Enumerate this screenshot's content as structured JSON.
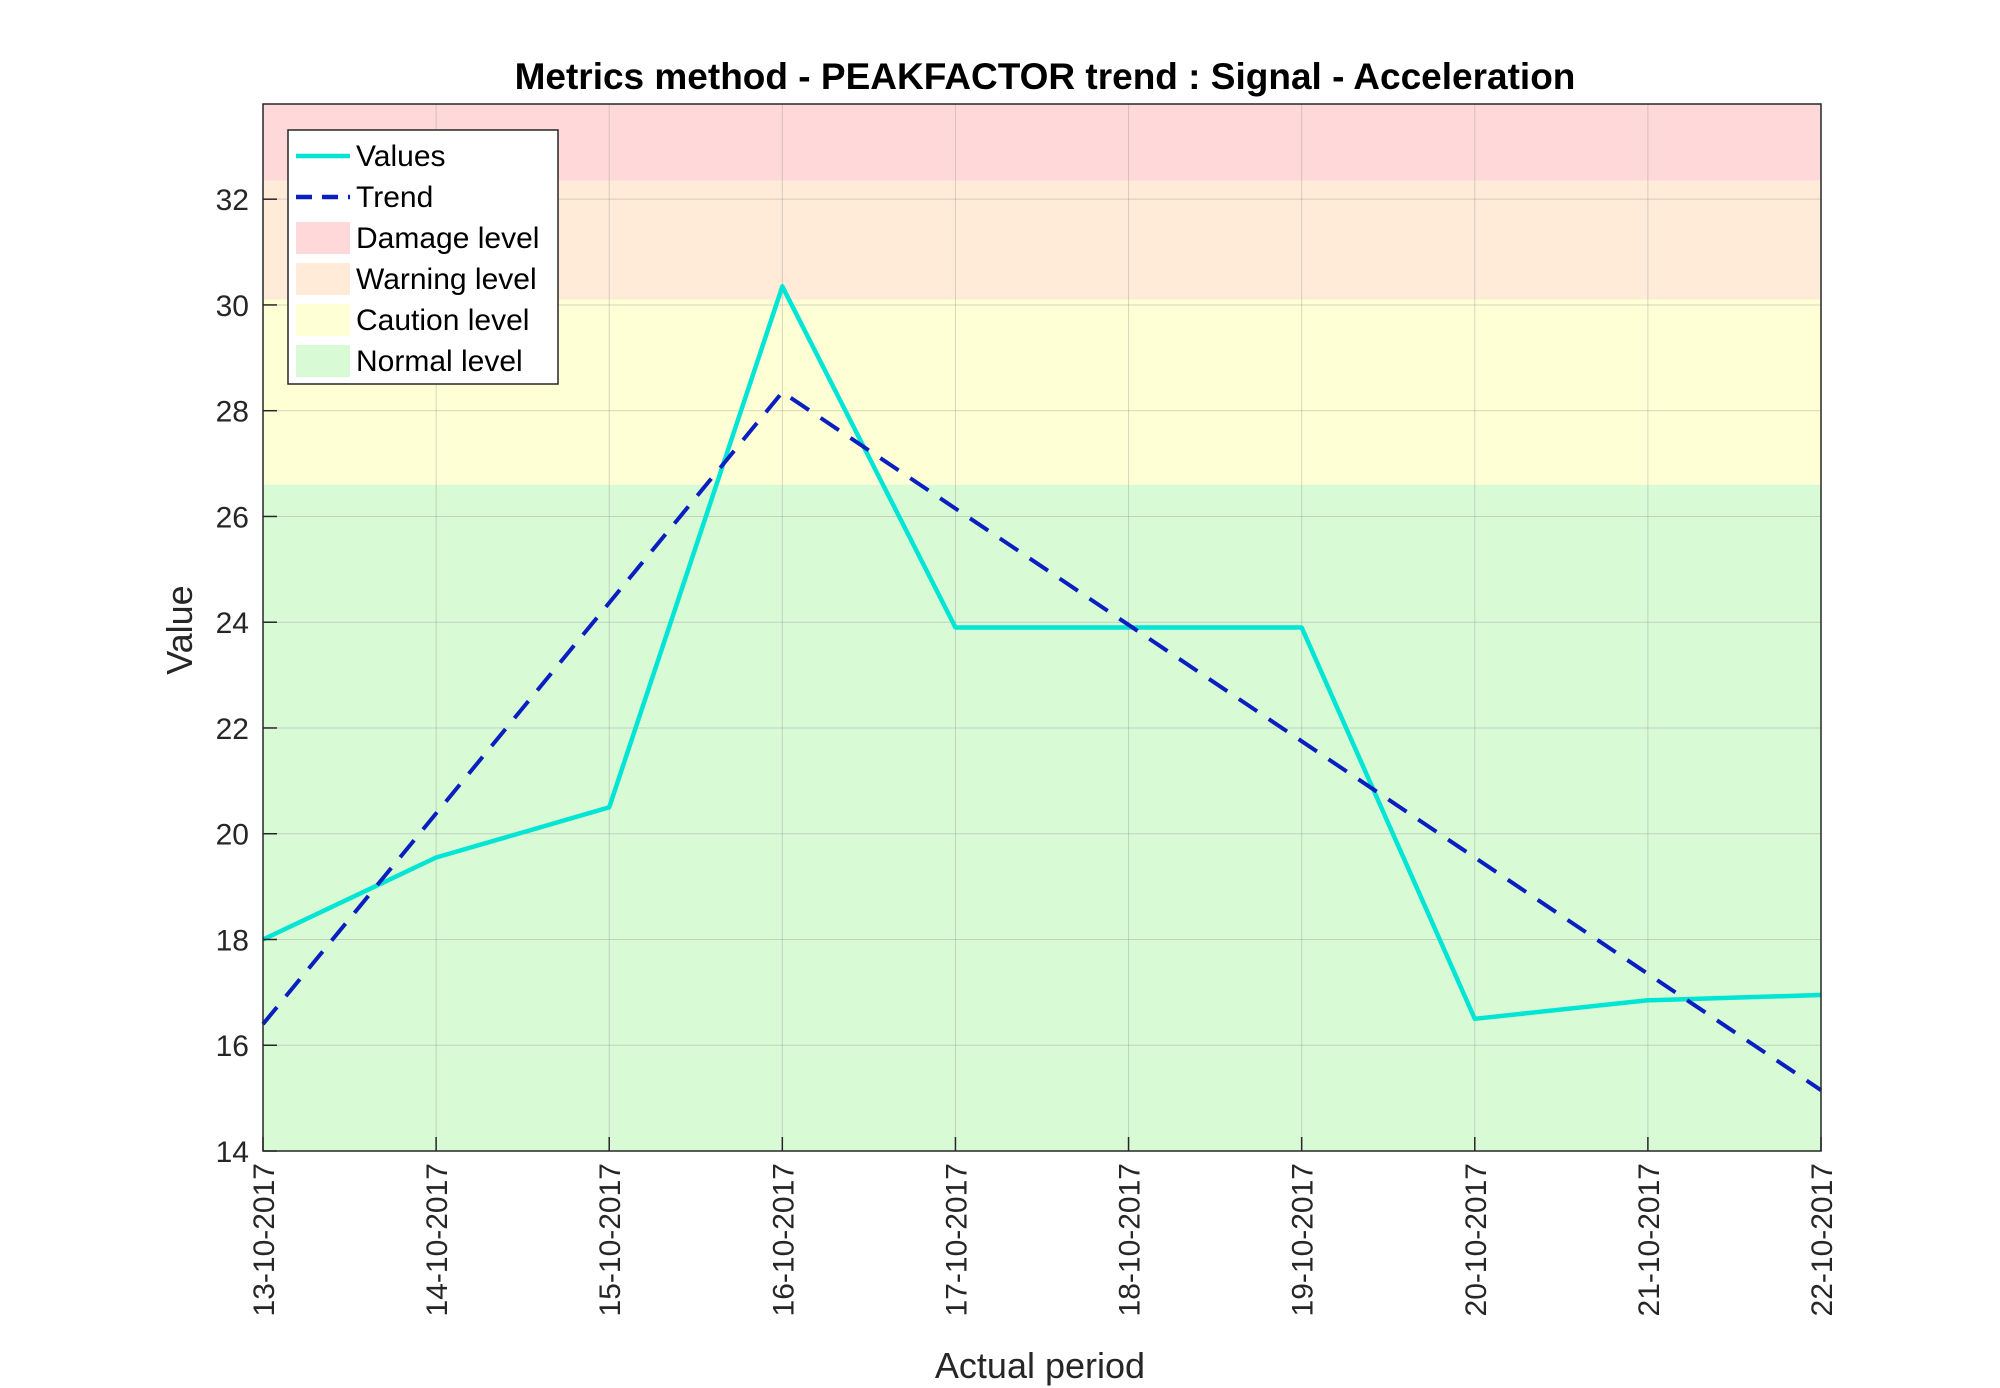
{
  "chart_data": {
    "type": "line",
    "title": "Metrics method - PEAKFACTOR trend : Signal - Acceleration",
    "xlabel": "Actual period",
    "ylabel": "Value",
    "categories": [
      "13-10-2017",
      "14-10-2017",
      "15-10-2017",
      "16-10-2017",
      "17-10-2017",
      "18-10-2017",
      "19-10-2017",
      "20-10-2017",
      "21-10-2017",
      "22-10-2017"
    ],
    "ylim": [
      14,
      33.8
    ],
    "yticks": [
      14,
      16,
      18,
      20,
      22,
      24,
      26,
      28,
      30,
      32
    ],
    "grid": true,
    "legend_position": "top-left",
    "series": [
      {
        "name": "Values",
        "style": "solid",
        "color": "#00e5d4",
        "values": [
          18.0,
          19.55,
          20.5,
          30.35,
          23.9,
          23.9,
          23.9,
          16.5,
          16.85,
          16.95
        ]
      },
      {
        "name": "Trend",
        "style": "dashed",
        "color": "#0a1fbf",
        "points": [
          [
            0,
            16.4
          ],
          [
            3,
            28.35
          ],
          [
            9,
            15.15
          ]
        ]
      }
    ],
    "bands": [
      {
        "name": "Damage level",
        "from": 32.35,
        "to": 33.8,
        "color": "#ffd9d9"
      },
      {
        "name": "Warning level",
        "from": 30.1,
        "to": 32.35,
        "color": "#ffebd8"
      },
      {
        "name": "Caution level",
        "from": 26.6,
        "to": 30.1,
        "color": "#ffffd6"
      },
      {
        "name": "Normal level",
        "from": 14,
        "to": 26.6,
        "color": "#d8fbd6"
      }
    ]
  }
}
